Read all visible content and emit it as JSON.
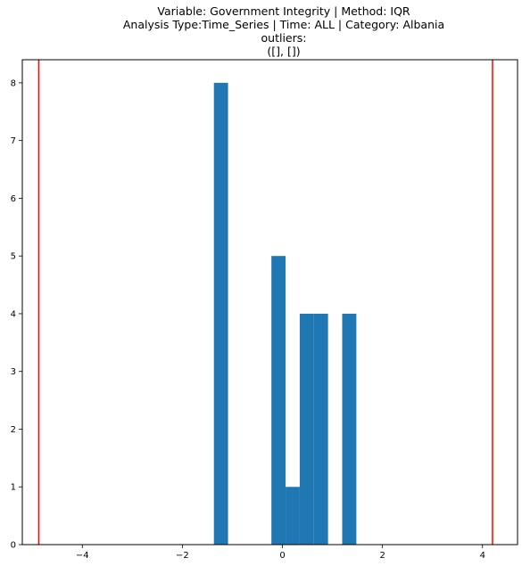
{
  "chart_data": {
    "type": "bar",
    "title_lines": [
      "Variable: Government Integrity | Method: IQR",
      "Analysis Type:Time_Series | Time: ALL | Category: Albania",
      "outliers:",
      "([], [])"
    ],
    "xlabel": "",
    "ylabel": "",
    "xlim": [
      -5.2,
      4.7
    ],
    "ylim": [
      0,
      8.4
    ],
    "x_ticks": [
      -4,
      -2,
      0,
      2,
      4
    ],
    "x_tick_labels": [
      "−4",
      "−2",
      "0",
      "2",
      "4"
    ],
    "y_ticks": [
      0,
      1,
      2,
      3,
      4,
      5,
      6,
      7,
      8
    ],
    "y_tick_labels": [
      "0",
      "1",
      "2",
      "3",
      "4",
      "5",
      "6",
      "7",
      "8"
    ],
    "bin_width": 0.283,
    "bins": [
      {
        "left": -1.37,
        "count": 8
      },
      {
        "left": -0.22,
        "count": 5
      },
      {
        "left": 0.063,
        "count": 1
      },
      {
        "left": 0.346,
        "count": 4
      },
      {
        "left": 0.629,
        "count": 4
      },
      {
        "left": 1.195,
        "count": 4
      }
    ],
    "bar_color": "#1f77b4",
    "threshold_lines": [
      {
        "x": -4.87,
        "color": "#ff0000"
      },
      {
        "x": 4.2,
        "color": "#ff0000"
      }
    ],
    "grid": false,
    "legend": "none"
  }
}
